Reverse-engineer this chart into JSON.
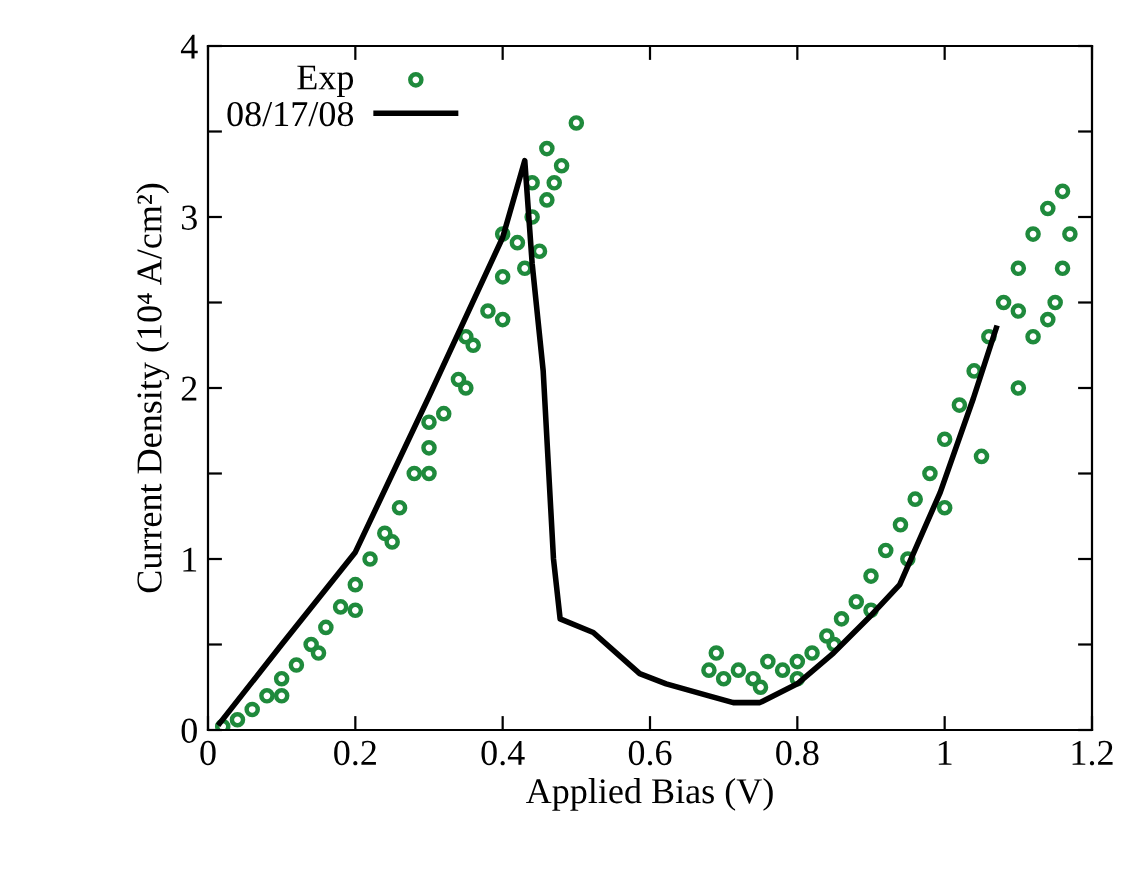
{
  "chart_data": {
    "type": "scatter",
    "xlabel": "Applied Bias (V)",
    "ylabel": "Current Density (10⁴ A/cm²)",
    "xlim": [
      0,
      1.2
    ],
    "xticks": [
      0,
      0.2,
      0.4,
      0.6,
      0.8,
      1,
      1.2
    ],
    "ylim": [
      0,
      4
    ],
    "yticks": [
      0,
      {
        "value": 0.5,
        "label": null
      },
      1,
      {
        "value": 1.5,
        "label": null
      },
      2,
      {
        "value": 2.5,
        "label": null
      },
      3,
      {
        "value": 3.5,
        "label": null
      },
      4
    ],
    "legend": "top left",
    "grid": false,
    "series": [
      {
        "name": "Exp",
        "marker": "circle",
        "color": "#1f8a3c",
        "x": [
          0.02,
          0.04,
          0.06,
          0.08,
          0.1,
          0.12,
          0.14,
          0.16,
          0.18,
          0.2,
          0.22,
          0.24,
          0.26,
          0.28,
          0.3,
          0.32,
          0.34,
          0.36,
          0.38,
          0.4,
          0.42,
          0.44,
          0.46,
          0.48,
          0.5,
          0.1,
          0.15,
          0.2,
          0.25,
          0.3,
          0.35,
          0.4,
          0.43,
          0.45,
          0.47,
          0.3,
          0.35,
          0.4,
          0.44,
          0.46,
          0.68,
          0.69,
          0.7,
          0.72,
          0.74,
          0.76,
          0.78,
          0.8,
          0.82,
          0.84,
          0.86,
          0.88,
          0.9,
          0.92,
          0.94,
          0.96,
          0.98,
          1.0,
          1.02,
          1.04,
          1.06,
          1.08,
          1.1,
          1.12,
          1.14,
          1.16,
          0.85,
          0.9,
          0.95,
          1.0,
          1.05,
          1.1,
          1.12,
          1.15,
          1.16,
          1.17,
          0.75,
          0.8,
          1.1,
          1.14
        ],
        "values": [
          0.02,
          0.06,
          0.12,
          0.2,
          0.3,
          0.38,
          0.5,
          0.6,
          0.72,
          0.85,
          1.0,
          1.15,
          1.3,
          1.5,
          1.65,
          1.85,
          2.05,
          2.25,
          2.45,
          2.65,
          2.85,
          3.0,
          3.1,
          3.3,
          3.55,
          0.2,
          0.45,
          0.7,
          1.1,
          1.5,
          2.0,
          2.4,
          2.7,
          2.8,
          3.2,
          1.8,
          2.3,
          2.9,
          3.2,
          3.4,
          0.35,
          0.45,
          0.3,
          0.35,
          0.3,
          0.4,
          0.35,
          0.4,
          0.45,
          0.55,
          0.65,
          0.75,
          0.9,
          1.05,
          1.2,
          1.35,
          1.5,
          1.7,
          1.9,
          2.1,
          2.3,
          2.5,
          2.7,
          2.9,
          3.05,
          3.15,
          0.5,
          0.7,
          1.0,
          1.3,
          1.6,
          2.0,
          2.3,
          2.5,
          2.7,
          2.9,
          0.25,
          0.3,
          2.45,
          2.4
        ]
      },
      {
        "name": "08/17/08",
        "type": "line",
        "marker": "none",
        "color": "#000000",
        "x": [
          0.016,
          0.1,
          0.2,
          0.3,
          0.4,
          0.43,
          0.44,
          0.455,
          0.469,
          0.478,
          0.523,
          0.586,
          0.622,
          0.68,
          0.713,
          0.749,
          0.8,
          0.849,
          0.9,
          0.939,
          0.994,
          1.039,
          1.07
        ],
        "values": [
          0.04,
          0.5,
          1.04,
          1.95,
          2.88,
          3.33,
          2.73,
          2.1,
          1.0,
          0.65,
          0.57,
          0.33,
          0.27,
          0.2,
          0.16,
          0.16,
          0.27,
          0.45,
          0.67,
          0.85,
          1.39,
          1.94,
          2.35
        ]
      }
    ]
  }
}
